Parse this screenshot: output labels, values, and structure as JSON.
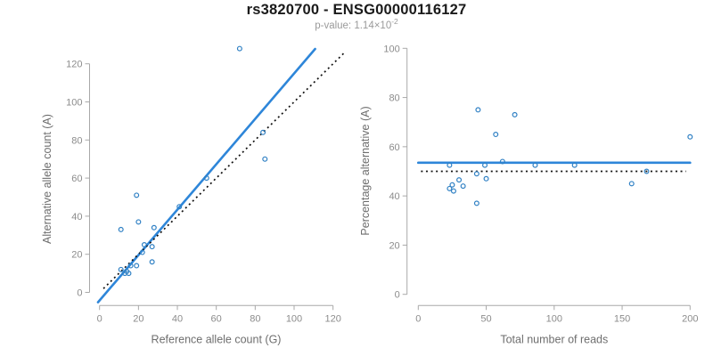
{
  "header": {
    "title": "rs3820700 - ENSG00000116127",
    "subtitle_prefix": "p-value: 1.14×10",
    "subtitle_exponent": "-2"
  },
  "colors": {
    "title": "#1a1a1a",
    "subtitle": "#9a9a9a",
    "axis": "#a8a8a8",
    "tick_label": "#8c8c8c",
    "axis_title": "#6e6e6e",
    "point": "#2f80c4",
    "fit_line": "#2e86d9",
    "reference_line": "#111111"
  },
  "chart_data": [
    {
      "type": "scatter",
      "name": "allele-counts",
      "xlabel": "Reference allele count (G)",
      "ylabel": "Alternative allele count (A)",
      "xlim": [
        0,
        126
      ],
      "ylim": [
        0,
        128
      ],
      "xticks": [
        0,
        20,
        40,
        60,
        80,
        100,
        120
      ],
      "yticks": [
        0,
        20,
        40,
        60,
        80,
        100,
        120
      ],
      "grid": false,
      "legend": false,
      "points": [
        [
          72,
          128
        ],
        [
          84,
          84
        ],
        [
          85,
          70
        ],
        [
          55,
          60
        ],
        [
          19,
          51
        ],
        [
          41,
          45
        ],
        [
          20,
          37
        ],
        [
          11,
          33
        ],
        [
          28,
          34
        ],
        [
          23,
          25
        ],
        [
          27,
          24
        ],
        [
          22,
          21
        ],
        [
          27,
          16
        ],
        [
          16,
          14
        ],
        [
          19,
          14
        ],
        [
          14,
          11
        ],
        [
          11,
          12
        ],
        [
          13,
          10
        ],
        [
          15,
          10
        ]
      ],
      "lines": [
        {
          "name": "fit-line",
          "role": "regression",
          "style": "solid",
          "x": [
            -0.8,
            110.8
          ],
          "y": [
            -5.2,
            127.8
          ]
        },
        {
          "name": "identity-line",
          "role": "reference",
          "style": "dotted",
          "x": [
            2,
            126.5
          ],
          "y": [
            2,
            126.5
          ]
        }
      ]
    },
    {
      "type": "scatter",
      "name": "percentage-vs-reads",
      "xlabel": "Total number of reads",
      "ylabel": "Percentage alternative (A)",
      "xlim": [
        0,
        200
      ],
      "ylim": [
        0,
        100
      ],
      "xticks": [
        0,
        50,
        100,
        150,
        200
      ],
      "yticks": [
        0,
        20,
        40,
        60,
        80,
        100
      ],
      "grid": false,
      "legend": false,
      "points": [
        [
          44,
          75
        ],
        [
          71,
          73
        ],
        [
          57,
          65
        ],
        [
          200,
          64
        ],
        [
          62,
          54
        ],
        [
          23,
          52.5
        ],
        [
          49,
          52.5
        ],
        [
          86,
          52.5
        ],
        [
          115,
          52.5
        ],
        [
          168,
          50
        ],
        [
          43,
          49
        ],
        [
          50,
          47
        ],
        [
          30,
          46.5
        ],
        [
          157,
          45
        ],
        [
          25,
          44.5
        ],
        [
          33,
          44
        ],
        [
          23,
          43
        ],
        [
          26,
          42
        ],
        [
          43,
          37
        ]
      ],
      "lines": [
        {
          "name": "fit-line",
          "role": "mean",
          "style": "solid",
          "x": [
            0,
            200
          ],
          "y": [
            53.5,
            53.5
          ]
        },
        {
          "name": "reference-line",
          "role": "reference",
          "style": "dotted",
          "x": [
            2,
            197
          ],
          "y": [
            50,
            50
          ]
        }
      ]
    }
  ]
}
